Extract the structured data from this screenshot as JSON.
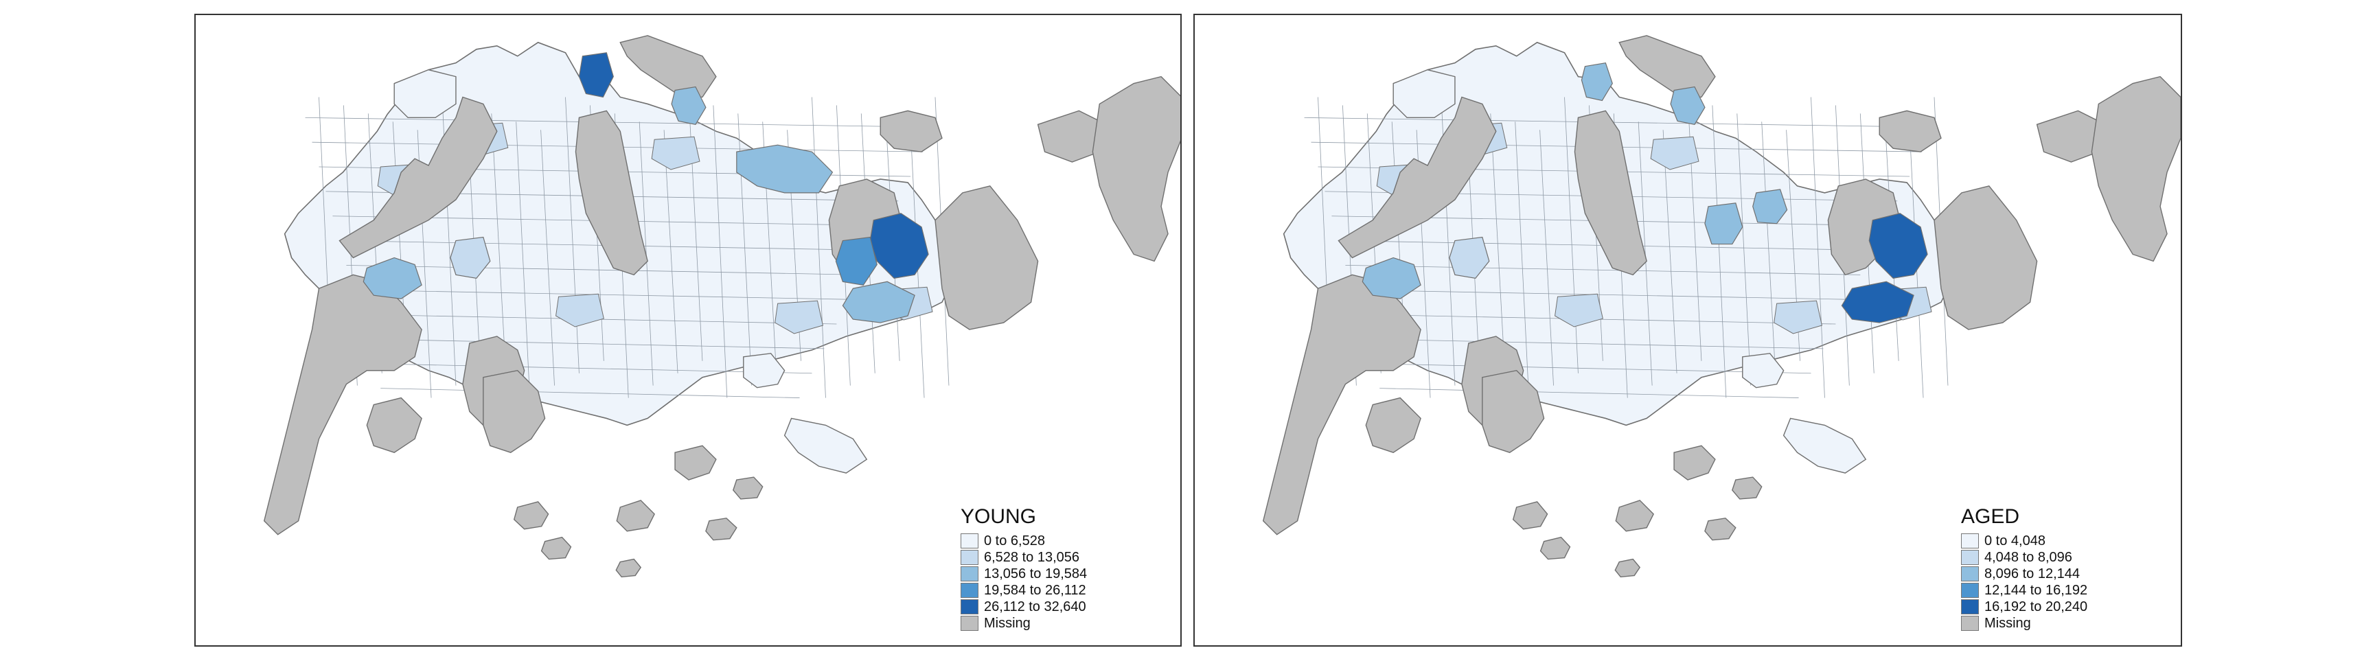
{
  "colors": {
    "missing": "#bebebe",
    "outline": "#6f6f6f",
    "classes": [
      "#eef4fb",
      "#c6dbef",
      "#8fbedf",
      "#4d95cf",
      "#1f63b0"
    ]
  },
  "maps": [
    {
      "id": "young",
      "legend": {
        "title": "YOUNG",
        "items": [
          "0 to 6,528",
          "6,528 to 13,056",
          "13,056 to 19,584",
          "19,584 to 26,112",
          "26,112 to 32,640"
        ],
        "missing_label": "Missing"
      },
      "highlights": [
        {
          "zone": "north-top",
          "class": 4
        },
        {
          "zone": "north-right",
          "class": 2
        },
        {
          "zone": "west-cluster",
          "class": 2
        },
        {
          "zone": "northeast-band",
          "class": 2
        },
        {
          "zone": "east-hotspot",
          "class": 4
        },
        {
          "zone": "east-secondary",
          "class": 3
        },
        {
          "zone": "east-lower",
          "class": 2
        },
        {
          "zone": "central-west",
          "class": 1
        }
      ]
    },
    {
      "id": "aged",
      "legend": {
        "title": "AGED",
        "items": [
          "0 to 4,048",
          "4,048 to 8,096",
          "8,096 to 12,144",
          "12,144 to 16,192",
          "16,192 to 20,240"
        ],
        "missing_label": "Missing"
      },
      "highlights": [
        {
          "zone": "north-mid",
          "class": 2
        },
        {
          "zone": "north-right",
          "class": 2
        },
        {
          "zone": "west-cluster",
          "class": 2
        },
        {
          "zone": "central-block",
          "class": 2
        },
        {
          "zone": "central-east",
          "class": 2
        },
        {
          "zone": "east-hotspot",
          "class": 4
        },
        {
          "zone": "east-lower",
          "class": 4
        },
        {
          "zone": "central-west",
          "class": 1
        }
      ]
    }
  ]
}
